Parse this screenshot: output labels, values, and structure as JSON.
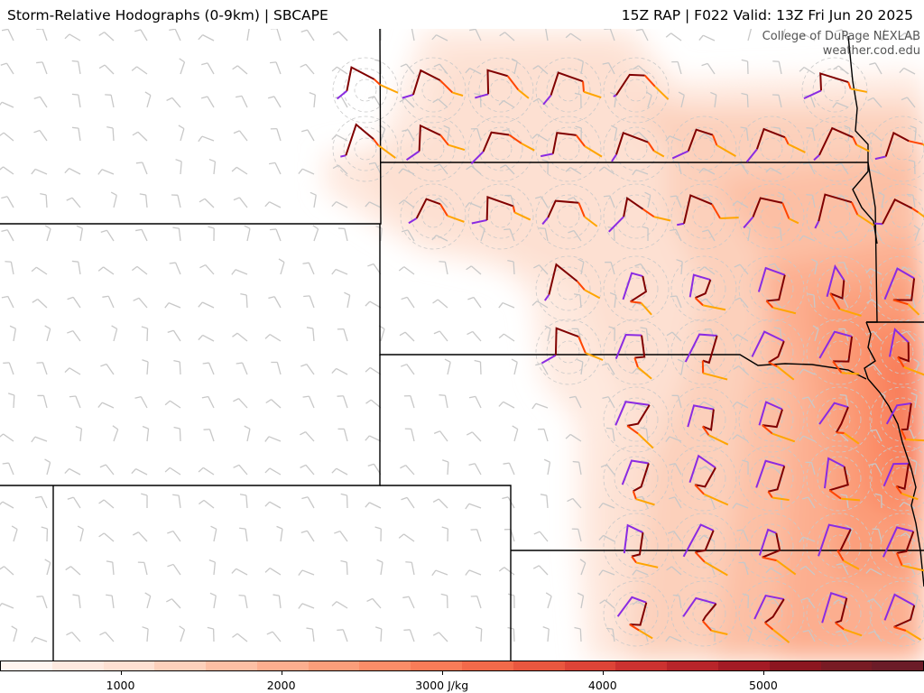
{
  "header": {
    "left_title": "Storm-Relative Hodographs (0-9km) | SBCAPE",
    "right_title": "15Z RAP | F022 Valid: 13Z Fri Jun 20 2025"
  },
  "credit": {
    "line1": "College of DuPage NEXLAB",
    "line2": "weather.cod.edu"
  },
  "colorbar": {
    "colors": [
      "#fff5f0",
      "#fee9df",
      "#fde0d2",
      "#fcd0bb",
      "#fcbfa4",
      "#fcae8f",
      "#fb9e7a",
      "#fb8d68",
      "#f87c58",
      "#f26a4a",
      "#e9573f",
      "#dd4437",
      "#cc3230",
      "#b8252a",
      "#a31b25",
      "#8c1620",
      "#781b24",
      "#6b1c28"
    ],
    "tick_labels": [
      {
        "text": "1000",
        "value": 1000
      },
      {
        "text": "2000",
        "value": 2000
      },
      {
        "text": "3000 J/kg",
        "value": 3000
      },
      {
        "text": "4000",
        "value": 4000
      },
      {
        "text": "5000",
        "value": 5000
      }
    ],
    "min": 250,
    "max": 6000
  },
  "hodograph_colors": {
    "layer_low": "#8a2be2",
    "layer_mid": "#800000",
    "layer_upper": "#ff4500",
    "layer_top": "#ffa500"
  }
}
